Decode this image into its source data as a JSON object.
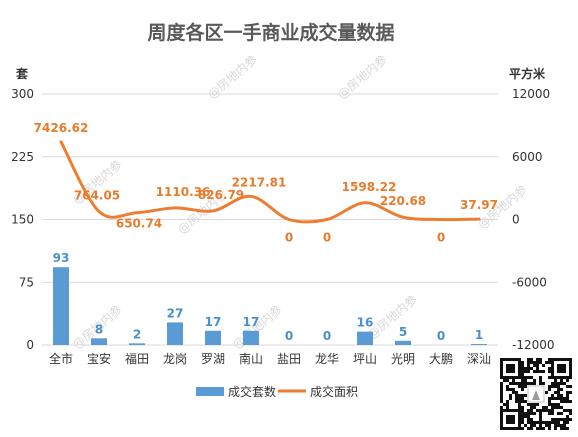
{
  "chart_data": {
    "type": "bar",
    "title": "周度各区一手商业成交量数据",
    "left_axis_unit": "套",
    "right_axis_unit": "平方米",
    "left_ylim": [
      0,
      300
    ],
    "right_ylim": [
      -12000,
      12000
    ],
    "left_ticks": [
      "0",
      "75",
      "150",
      "225",
      "300"
    ],
    "right_ticks": [
      "-12000",
      "-6000",
      "0",
      "6000",
      "12000"
    ],
    "categories": [
      "全市",
      "宝安",
      "福田",
      "龙岗",
      "罗湖",
      "南山",
      "盐田",
      "龙华",
      "坪山",
      "光明",
      "大鹏",
      "深汕"
    ],
    "series": [
      {
        "name": "成交套数",
        "type": "bar",
        "axis": "left",
        "color": "#5b9bd5",
        "values": [
          93,
          8,
          2,
          27,
          17,
          17,
          0,
          0,
          16,
          5,
          0,
          1
        ],
        "labels": [
          "93",
          "8",
          "2",
          "27",
          "17",
          "17",
          "0",
          "0",
          "16",
          "5",
          "0",
          "1"
        ]
      },
      {
        "name": "成交面积",
        "type": "line",
        "axis": "right",
        "color": "#ed7d31",
        "values": [
          7426.62,
          764.05,
          650.74,
          1110.36,
          826.79,
          2217.81,
          0,
          0,
          1598.22,
          220.68,
          0,
          37.97
        ],
        "labels": [
          "7426.62",
          "764.05",
          "650.74",
          "1110.36",
          "826.79",
          "2217.81",
          "0",
          "0",
          "1598.22",
          "220.68",
          "0",
          "37.97"
        ]
      }
    ],
    "grid": true,
    "legend_position": "bottom"
  },
  "watermark": "@房地内参",
  "qr_code": "qr-code"
}
